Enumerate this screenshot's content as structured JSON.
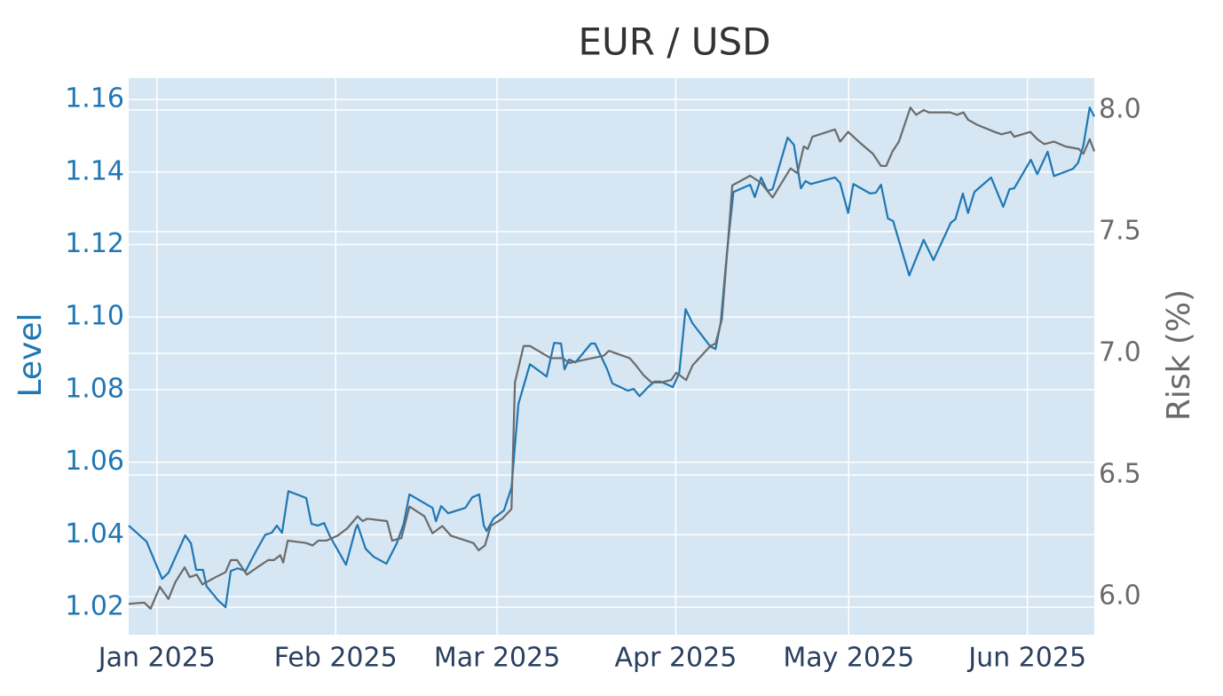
{
  "chart_data": {
    "type": "line",
    "title": "EUR / USD",
    "y_label": "Level",
    "y2_label": "Risk (%)",
    "xlim": [
      -4.9,
      162.6
    ],
    "xticks": [
      {
        "value": 0,
        "label": "Jan 2025"
      },
      {
        "value": 31,
        "label": "Feb 2025"
      },
      {
        "value": 59,
        "label": "Mar 2025"
      },
      {
        "value": 90,
        "label": "Apr 2025"
      },
      {
        "value": 120,
        "label": "May 2025"
      },
      {
        "value": 151,
        "label": "Jun 2025"
      }
    ],
    "ylim": [
      1.0124,
      1.1659
    ],
    "yticks": [
      1.02,
      1.04,
      1.06,
      1.08,
      {
        "value": 1.1,
        "label": "1.10"
      },
      1.12,
      1.14,
      1.16
    ],
    "y2lim": [
      5.843,
      8.131
    ],
    "y2ticks": [
      {
        "value": 6,
        "label": "6.0"
      },
      6.5,
      {
        "value": 7,
        "label": "7.0"
      },
      7.5,
      {
        "value": 8,
        "label": "8.0"
      }
    ],
    "grid": true,
    "y_color": "#1f77b4",
    "y2_color": "#6b6b6b",
    "series": [
      {
        "name": "Level",
        "color": "#1f77b4",
        "x": [
          -4.9,
          -1.8,
          0.9,
          2.0,
          4.9,
          5.9,
          6.8,
          8.0,
          8.6,
          10.6,
          11.9,
          12.8,
          14.0,
          15.4,
          17.1,
          18.8,
          19.9,
          20.8,
          21.7,
          22.8,
          25.9,
          26.8,
          27.9,
          29.0,
          30.0,
          32.8,
          34.5,
          34.8,
          36.2,
          37.6,
          39.8,
          41.6,
          42.8,
          43.8,
          47.8,
          48.4,
          49.3,
          50.5,
          53.5,
          54.7,
          55.9,
          56.7,
          57.2,
          58.4,
          60.2,
          61.5,
          62.7,
          64.7,
          67.6,
          68.9,
          70.1,
          70.7,
          71.5,
          72.6,
          75.3,
          76.0,
          78.1,
          79.0,
          81.7,
          82.7,
          83.7,
          85.2,
          86.3,
          87.4,
          89.5,
          90.6,
          91.7,
          92.9,
          96.0,
          96.9,
          97.8,
          98.9,
          100.0,
          102.9,
          103.7,
          104.8,
          105.9,
          106.8,
          109.4,
          110.5,
          111.7,
          112.5,
          113.4,
          117.6,
          118.5,
          119.9,
          120.8,
          123.7,
          124.7,
          125.6,
          126.8,
          127.7,
          130.5,
          133.0,
          134.7,
          137.7,
          138.5,
          139.8,
          140.7,
          141.8,
          144.7,
          146.8,
          147.9,
          148.7,
          151.6,
          152.7,
          154.5,
          155.6,
          158.9,
          159.8,
          160.7,
          161.8,
          162.6
        ],
        "values": [
          1.0425,
          1.0381,
          1.0278,
          1.0295,
          1.0398,
          1.0376,
          1.0303,
          1.0303,
          1.0258,
          1.0219,
          1.02,
          1.03,
          1.0307,
          1.03,
          1.0352,
          1.04,
          1.0405,
          1.0425,
          1.0405,
          1.052,
          1.0501,
          1.043,
          1.0425,
          1.0432,
          1.0396,
          1.0317,
          1.0418,
          1.0427,
          1.0361,
          1.0339,
          1.032,
          1.0376,
          1.043,
          1.0511,
          1.0474,
          1.0437,
          1.0479,
          1.0459,
          1.0474,
          1.0503,
          1.0511,
          1.0425,
          1.041,
          1.0445,
          1.0467,
          1.053,
          1.076,
          1.087,
          1.0836,
          1.0929,
          1.0927,
          1.0856,
          1.0883,
          1.0875,
          1.0927,
          1.0927,
          1.0856,
          1.0817,
          1.0797,
          1.0802,
          1.0782,
          1.0807,
          1.0822,
          1.0822,
          1.0807,
          1.0846,
          1.1022,
          1.0983,
          1.0919,
          1.0912,
          1.0986,
          1.1181,
          1.1345,
          1.1365,
          1.1331,
          1.1385,
          1.1348,
          1.1353,
          1.1495,
          1.1475,
          1.1355,
          1.1375,
          1.1367,
          1.1385,
          1.137,
          1.1287,
          1.1367,
          1.1341,
          1.1343,
          1.1365,
          1.1272,
          1.1265,
          1.1115,
          1.1213,
          1.1157,
          1.126,
          1.127,
          1.1341,
          1.1287,
          1.1345,
          1.1385,
          1.1304,
          1.1353,
          1.1355,
          1.1434,
          1.1394,
          1.1456,
          1.1389,
          1.1409,
          1.1426,
          1.1473,
          1.1578,
          1.1553
        ]
      },
      {
        "name": "Risk (%)",
        "color": "#6b6b6b",
        "axis": "y2",
        "x": [
          -4.9,
          -2.2,
          -1.1,
          0.5,
          2.0,
          3.2,
          4.8,
          5.7,
          6.9,
          7.9,
          10.2,
          11.9,
          12.8,
          13.9,
          15.6,
          17.4,
          19.3,
          20.3,
          21.4,
          21.9,
          22.7,
          25.9,
          27.0,
          28.0,
          29.4,
          31.3,
          33.0,
          34.8,
          35.7,
          36.5,
          39.9,
          40.8,
          42.4,
          43.8,
          46.4,
          47.8,
          49.5,
          51.0,
          54.9,
          55.8,
          56.9,
          57.9,
          59.9,
          61.5,
          62.1,
          63.6,
          64.7,
          68.3,
          70.4,
          71.5,
          75.5,
          77.5,
          78.4,
          82.0,
          83.1,
          84.4,
          85.8,
          87.4,
          89.2,
          90.1,
          91.8,
          92.9,
          96.0,
          96.9,
          98.0,
          99.1,
          99.8,
          102.9,
          104.8,
          106.8,
          109.9,
          111.1,
          112.2,
          112.9,
          113.7,
          117.6,
          118.5,
          119.9,
          122.2,
          124.2,
          125.6,
          126.5,
          127.6,
          128.7,
          130.7,
          131.7,
          133.0,
          133.9,
          137.6,
          138.8,
          139.9,
          140.7,
          142.2,
          145.3,
          146.5,
          148.1,
          148.7,
          151.5,
          152.7,
          153.9,
          155.6,
          157.6,
          159.9,
          160.7,
          161.8,
          162.6
        ],
        "values": [
          5.97,
          5.975,
          5.95,
          6.04,
          5.99,
          6.06,
          6.12,
          6.08,
          6.09,
          6.05,
          6.08,
          6.1,
          6.15,
          6.15,
          6.09,
          6.12,
          6.15,
          6.15,
          6.17,
          6.14,
          6.23,
          6.22,
          6.21,
          6.23,
          6.23,
          6.25,
          6.28,
          6.33,
          6.31,
          6.32,
          6.31,
          6.23,
          6.24,
          6.37,
          6.33,
          6.26,
          6.29,
          6.25,
          6.22,
          6.19,
          6.21,
          6.29,
          6.32,
          6.36,
          6.88,
          7.03,
          7.03,
          6.98,
          6.98,
          6.96,
          6.98,
          6.99,
          7.01,
          6.98,
          6.95,
          6.91,
          6.88,
          6.88,
          6.89,
          6.92,
          6.89,
          6.95,
          7.03,
          7.04,
          7.14,
          7.47,
          7.69,
          7.73,
          7.7,
          7.64,
          7.76,
          7.74,
          7.85,
          7.84,
          7.89,
          7.92,
          7.87,
          7.91,
          7.86,
          7.82,
          7.77,
          7.77,
          7.83,
          7.87,
          8.01,
          7.98,
          8.0,
          7.99,
          7.99,
          7.98,
          7.99,
          7.96,
          7.94,
          7.91,
          7.9,
          7.91,
          7.89,
          7.91,
          7.88,
          7.86,
          7.87,
          7.85,
          7.84,
          7.82,
          7.88,
          7.83
        ]
      }
    ]
  }
}
